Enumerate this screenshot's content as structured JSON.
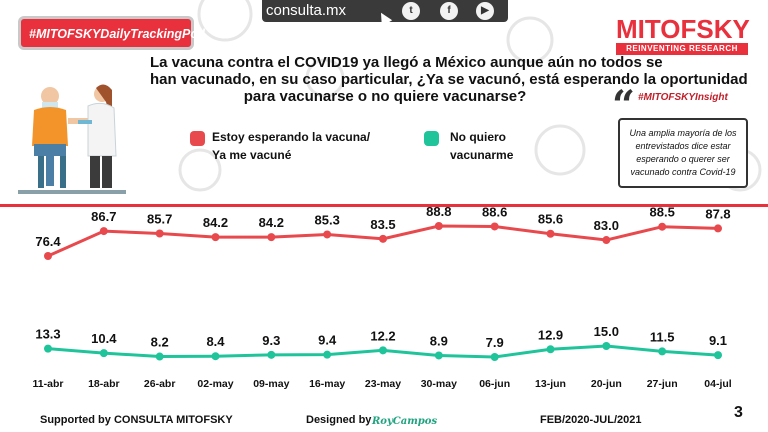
{
  "header": {
    "site": "consulta.mx",
    "social": [
      "twitter-icon",
      "facebook-icon",
      "youtube-icon"
    ],
    "hashtag": "#MITOFSKYDailyTrackingPoll",
    "brand": "MITOFSKY",
    "brand_sub": "REINVENTING RESEARCH"
  },
  "question": {
    "lines": [
      "La vacuna contra el COVID19 ya llegó a México aunque aún no todos se",
      "han vacunado, en su caso particular, ¿Ya se vacunó, está esperando la oportunidad",
      "para vacunarse o no quiere vacunarse?"
    ]
  },
  "insight": {
    "tag": "#MITOFSKYInsight",
    "text": "Una amplia mayoría de los entrevistados dice estar esperando o querer ser vacunado contra Covid-19"
  },
  "colors": {
    "red": "#e8494d",
    "green": "#1fc49a",
    "brand": "#e8313d"
  },
  "chart_data": {
    "type": "line",
    "categories": [
      "11-abr",
      "18-abr",
      "26-abr",
      "02-may",
      "09-may",
      "16-may",
      "23-may",
      "30-may",
      "06-jun",
      "13-jun",
      "20-jun",
      "27-jun",
      "04-jul"
    ],
    "series": [
      {
        "name": "Estoy esperando la vacuna/ Ya me vacuné",
        "name_lines": [
          "Estoy esperando la vacuna/",
          "Ya me vacuné"
        ],
        "color": "#e8494d",
        "values": [
          76.4,
          86.7,
          85.7,
          84.2,
          84.2,
          85.3,
          83.5,
          88.8,
          88.6,
          85.6,
          83.0,
          88.5,
          87.8
        ]
      },
      {
        "name": "No quiero vacunarme",
        "name_lines": [
          "No quiero",
          "vacunarme"
        ],
        "color": "#1fc49a",
        "values": [
          13.3,
          10.4,
          8.2,
          8.4,
          9.3,
          9.4,
          12.2,
          8.9,
          7.9,
          12.9,
          15.0,
          11.5,
          9.1
        ]
      }
    ],
    "title": "",
    "xlabel": "",
    "ylabel": ""
  },
  "footer": {
    "supported": "Supported by  CONSULTA  MITOFSKY",
    "designed": "Designed by",
    "designer": "RoyCampos",
    "period": "FEB/2020-JUL/2021",
    "page": "3"
  }
}
